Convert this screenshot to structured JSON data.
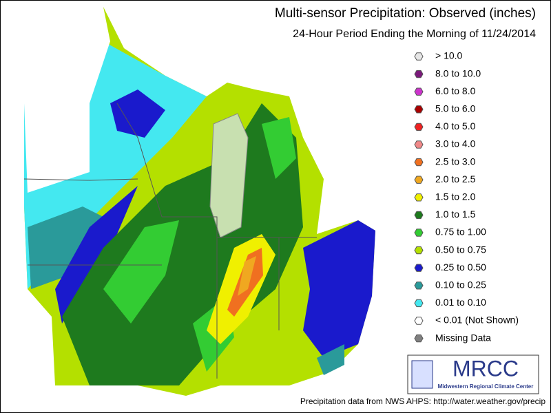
{
  "title": "Multi-sensor Precipitation:  Observed (inches)",
  "subtitle": "24-Hour Period Ending the Morning of 11/24/2014",
  "legend": [
    {
      "label": "> 10.0",
      "color": "#e6e6e6"
    },
    {
      "label": "8.0 to 10.0",
      "color": "#7a1a7a"
    },
    {
      "label": "6.0 to 8.0",
      "color": "#cc33cc"
    },
    {
      "label": "5.0 to 6.0",
      "color": "#aa0000"
    },
    {
      "label": "4.0 to 5.0",
      "color": "#ee2222"
    },
    {
      "label": "3.0 to 4.0",
      "color": "#f08888"
    },
    {
      "label": "2.5 to 3.0",
      "color": "#f07020"
    },
    {
      "label": "2.0 to 2.5",
      "color": "#f0a820"
    },
    {
      "label": "1.5 to 2.0",
      "color": "#f0f000"
    },
    {
      "label": "1.0 to 1.5",
      "color": "#1e7a1e"
    },
    {
      "label": "0.75 to 1.00",
      "color": "#33cc33"
    },
    {
      "label": "0.50 to 0.75",
      "color": "#b4e000"
    },
    {
      "label": "0.25 to 0.50",
      "color": "#1a1acc"
    },
    {
      "label": "0.10 to 0.25",
      "color": "#2a9a9a"
    },
    {
      "label": "0.01 to 0.10",
      "color": "#44e8f0"
    },
    {
      "label": "< 0.01 (Not Shown)",
      "color": "#ffffff"
    },
    {
      "label": "Missing Data",
      "color": "#808080"
    }
  ],
  "logo": {
    "name": "MRCC",
    "full_name": "Midwestern Regional Climate Center"
  },
  "source": "Precipitation data from NWS AHPS: http://water.weather.gov/precip"
}
